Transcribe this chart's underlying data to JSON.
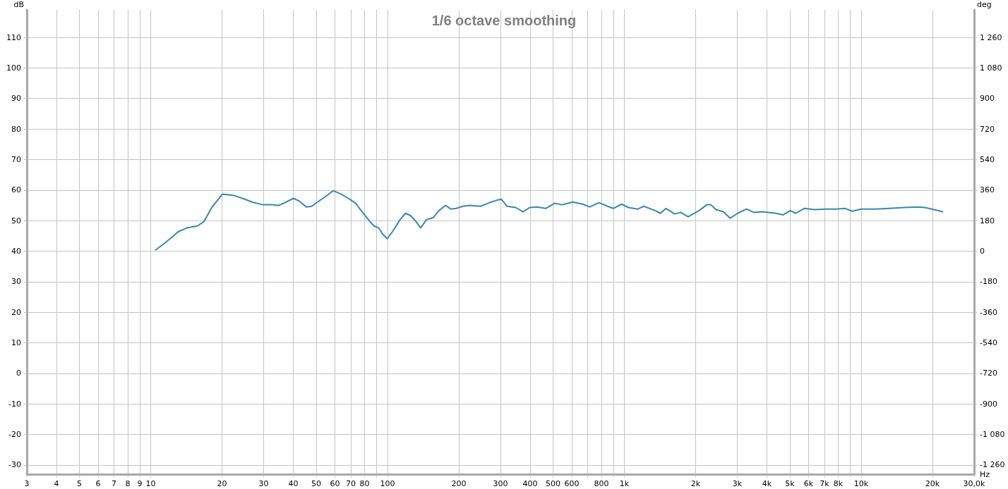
{
  "chart_data": {
    "type": "line",
    "title": "1/6 octave smoothing",
    "xlabel": "Hz",
    "ylabel": "dB",
    "y2label": "deg",
    "log": "x",
    "grid": true,
    "marker": "none",
    "line_style": "solid",
    "xlim": [
      3,
      30000
    ],
    "xticks": [
      3,
      4,
      5,
      6,
      7,
      8,
      9,
      10,
      20,
      30,
      40,
      50,
      60,
      70,
      80,
      {
        "value": 90,
        "label": null
      },
      100,
      200,
      300,
      400,
      500,
      600,
      {
        "value": 700,
        "label": null
      },
      800,
      {
        "value": 900,
        "label": null
      },
      {
        "value": 1000,
        "label": "1k"
      },
      {
        "value": 2000,
        "label": "2k"
      },
      {
        "value": 3000,
        "label": "3k"
      },
      {
        "value": 4000,
        "label": "4k"
      },
      {
        "value": 5000,
        "label": "5k"
      },
      {
        "value": 6000,
        "label": "6k"
      },
      {
        "value": 7000,
        "label": "7k"
      },
      {
        "value": 8000,
        "label": "8k"
      },
      {
        "value": 9000,
        "label": null
      },
      {
        "value": 10000,
        "label": "10k"
      },
      {
        "value": 20000,
        "label": "20k"
      },
      {
        "value": 30000,
        "label": "30,0k"
      }
    ],
    "ylim": [
      -33,
      119
    ],
    "yticks": [
      -30,
      -20,
      -10,
      0,
      10,
      20,
      30,
      40,
      50,
      60,
      70,
      80,
      90,
      100,
      110
    ],
    "y2lim": [
      -1314,
      1422
    ],
    "y2ticks": [
      {
        "value": -1260,
        "label": "-1 260"
      },
      {
        "value": -1080,
        "label": "-1 080"
      },
      -900,
      -720,
      -540,
      -360,
      -180,
      0,
      180,
      360,
      540,
      720,
      900,
      {
        "value": 1080,
        "label": "1 080"
      },
      {
        "value": 1260,
        "label": "1 260"
      }
    ],
    "series": [
      {
        "color": "#3a87b0",
        "x": [
          10.5,
          11.5,
          13.1,
          14.2,
          15.8,
          16.8,
          18.1,
          20.1,
          22.6,
          25,
          26.8,
          29.7,
          32.4,
          34.7,
          36.5,
          40.1,
          42.4,
          45.4,
          47.9,
          50.6,
          55,
          58.9,
          63.7,
          68.4,
          73.3,
          78.5,
          84.3,
          87.6,
          91.9,
          95.2,
          99.7,
          105,
          113,
          119,
          125,
          132,
          138,
          146,
          156,
          165,
          176,
          185,
          195,
          208,
          223,
          247,
          270,
          293,
          303,
          320,
          348,
          373,
          399,
          427,
          465,
          509,
          545,
          606,
          668,
          715,
          782,
          850,
          898,
          975,
          1040,
          1140,
          1210,
          1350,
          1420,
          1500,
          1630,
          1730,
          1860,
          2070,
          2230,
          2320,
          2440,
          2620,
          2800,
          3010,
          3280,
          3520,
          3830,
          4380,
          4690,
          5020,
          5300,
          5750,
          6370,
          7060,
          7820,
          8560,
          9170,
          10000,
          11470,
          13160,
          15100,
          17340,
          18580,
          19920,
          22080
        ],
        "values": [
          40.4,
          42.7,
          46.4,
          47.6,
          48.3,
          49.7,
          54.3,
          58.7,
          58.2,
          57.0,
          56.1,
          55.2,
          55.2,
          55.0,
          55.7,
          57.3,
          56.4,
          54.5,
          54.7,
          56.1,
          58.0,
          59.8,
          58.7,
          57.3,
          55.7,
          52.7,
          49.7,
          48.3,
          47.6,
          45.7,
          44.1,
          46.4,
          50.3,
          52.4,
          51.7,
          49.7,
          47.6,
          50.3,
          51.0,
          53.3,
          55.0,
          53.8,
          54.0,
          54.7,
          55.0,
          54.7,
          55.9,
          56.8,
          57.0,
          54.7,
          54.3,
          52.9,
          54.3,
          54.5,
          54.0,
          55.7,
          55.2,
          56.1,
          55.4,
          54.5,
          55.9,
          54.7,
          54.0,
          55.4,
          54.3,
          53.8,
          54.7,
          53.3,
          52.4,
          54.0,
          52.2,
          52.7,
          51.3,
          53.3,
          55.2,
          55.2,
          53.6,
          52.9,
          50.8,
          52.4,
          53.8,
          52.7,
          52.9,
          52.4,
          51.9,
          53.3,
          52.4,
          54.0,
          53.6,
          53.8,
          53.8,
          54.0,
          53.1,
          53.8,
          53.8,
          54.0,
          54.3,
          54.5,
          54.3,
          53.8,
          52.9
        ]
      }
    ]
  }
}
